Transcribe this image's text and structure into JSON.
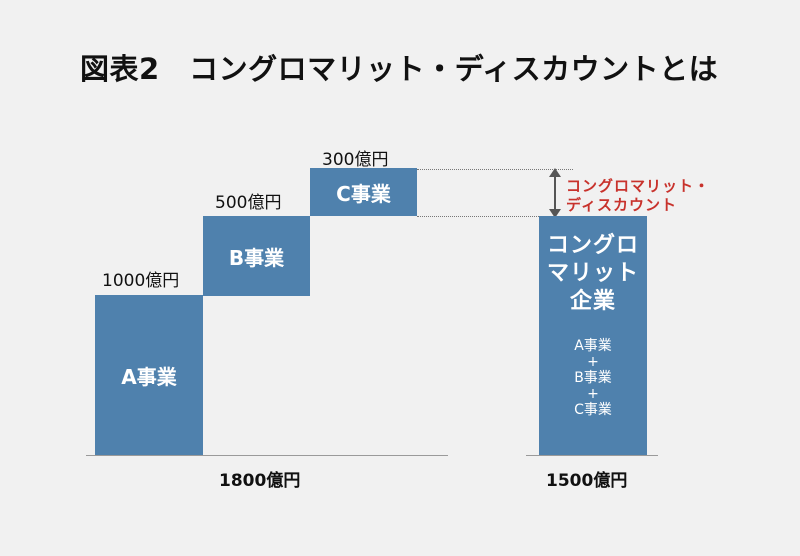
{
  "title": "図表2　コングロマリット・ディスカウントとは",
  "businesses": [
    {
      "label": "A事業",
      "amount": "1000億円",
      "value": 1000
    },
    {
      "label": "B事業",
      "amount": "500億円",
      "value": 500
    },
    {
      "label": "C事業",
      "amount": "300億円",
      "value": 300
    }
  ],
  "sum_label": "1800億円",
  "conglomerate": {
    "title_lines": [
      "コングロ",
      "マリット",
      "企業"
    ],
    "parts": [
      "A事業",
      "+",
      "B事業",
      "+",
      "C事業"
    ],
    "value_label": "1500億円",
    "value": 1500
  },
  "discount": {
    "lines": [
      "コングロマリット・",
      "ディスカウント"
    ],
    "value": 300
  },
  "colors": {
    "bar": "#4f81ad",
    "callout": "#c8322c",
    "background": "#f1f1f1"
  }
}
